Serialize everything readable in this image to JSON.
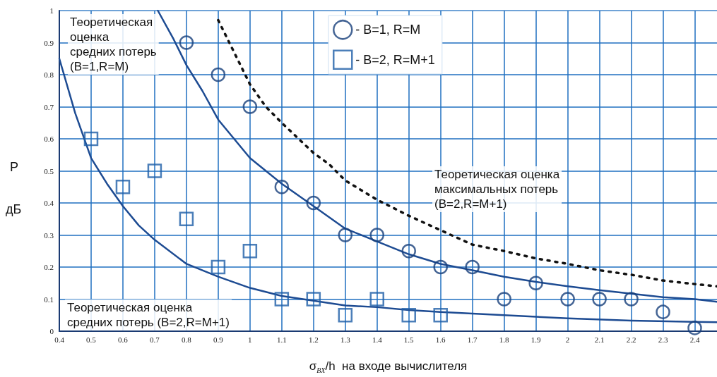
{
  "chart_data": {
    "type": "scatter",
    "xlabel": "σ$_{BX}$/h  на входе вычислителя",
    "ylabel": "Р дБ",
    "xlim": [
      0.4,
      2.47
    ],
    "xticks": [
      0.4,
      0.5,
      0.6,
      0.7,
      0.8,
      0.9,
      1,
      1.1,
      1.2,
      1.3,
      1.4,
      1.5,
      1.6,
      1.7,
      1.8,
      1.9,
      2,
      2.1,
      2.2,
      2.3,
      2.4
    ],
    "ylim": [
      0,
      1
    ],
    "yticks": [
      0,
      0.1,
      0.2,
      0.3,
      0.4,
      0.5,
      0.6,
      0.7,
      0.8,
      0.9,
      1
    ],
    "grid": true,
    "legend": "top",
    "series": [
      {
        "name": "- B=1, R=M",
        "marker": "circle",
        "color": "#173f7a",
        "x": [
          0.8,
          0.9,
          1.0,
          1.1,
          1.2,
          1.3,
          1.4,
          1.5,
          1.6,
          1.7,
          1.8,
          1.9,
          2.0,
          2.1,
          2.2,
          2.3,
          2.4
        ],
        "values": [
          0.9,
          0.8,
          0.7,
          0.45,
          0.4,
          0.3,
          0.3,
          0.25,
          0.2,
          0.2,
          0.1,
          0.15,
          0.1,
          0.1,
          0.1,
          0.06,
          0.01
        ]
      },
      {
        "name": "- B=2, R=M+1",
        "marker": "square",
        "color": "#1f5fa8",
        "x": [
          0.5,
          0.6,
          0.7,
          0.8,
          0.9,
          1.0,
          1.1,
          1.2,
          1.3,
          1.4,
          1.5,
          1.6
        ],
        "values": [
          0.6,
          0.45,
          0.5,
          0.35,
          0.2,
          0.25,
          0.1,
          0.1,
          0.05,
          0.1,
          0.05,
          0.05
        ]
      },
      {
        "type": "line",
        "line_style": "solid",
        "color": "#1d4b92",
        "x": [
          0.71,
          0.76,
          0.8,
          0.85,
          0.9,
          0.95,
          1.0,
          1.1,
          1.2,
          1.3,
          1.4,
          1.5,
          1.6,
          1.7,
          1.8,
          1.9,
          2.0,
          2.1,
          2.2,
          2.3,
          2.4,
          2.47
        ],
        "values": [
          1.0,
          0.91,
          0.83,
          0.75,
          0.66,
          0.6,
          0.54,
          0.46,
          0.39,
          0.32,
          0.28,
          0.24,
          0.21,
          0.19,
          0.17,
          0.154,
          0.14,
          0.128,
          0.117,
          0.106,
          0.1,
          0.092
        ]
      },
      {
        "type": "line",
        "line_style": "solid",
        "color": "#1d4b92",
        "x": [
          0.4,
          0.45,
          0.5,
          0.55,
          0.6,
          0.65,
          0.7,
          0.8,
          0.9,
          1.0,
          1.1,
          1.2,
          1.3,
          1.4,
          1.5,
          1.6,
          1.8,
          2.0,
          2.2,
          2.4,
          2.47
        ],
        "values": [
          0.85,
          0.68,
          0.54,
          0.46,
          0.39,
          0.33,
          0.285,
          0.21,
          0.17,
          0.135,
          0.11,
          0.095,
          0.08,
          0.075,
          0.066,
          0.06,
          0.05,
          0.04,
          0.033,
          0.029,
          0.028
        ]
      },
      {
        "type": "line",
        "line_style": "dotted",
        "color": "#111111",
        "x": [
          0.9,
          0.95,
          1.0,
          1.05,
          1.1,
          1.2,
          1.25,
          1.3,
          1.4,
          1.5,
          1.6,
          1.7,
          1.8,
          1.9,
          2.0,
          2.1,
          2.2,
          2.3,
          2.4,
          2.47
        ],
        "values": [
          0.97,
          0.87,
          0.77,
          0.7,
          0.65,
          0.556,
          0.52,
          0.47,
          0.41,
          0.36,
          0.315,
          0.27,
          0.25,
          0.227,
          0.21,
          0.19,
          0.176,
          0.158,
          0.147,
          0.14
        ]
      }
    ],
    "annotations": [
      "Теоретическая\nоценка\nсредних потерь\n(B=1,R=M)",
      "Теоретическая оценка\nсредних потерь (B=2,R=M+1)",
      "Теоретическая оценка\nмаксимальных потерь\n(B=2,R=M+1)"
    ]
  }
}
